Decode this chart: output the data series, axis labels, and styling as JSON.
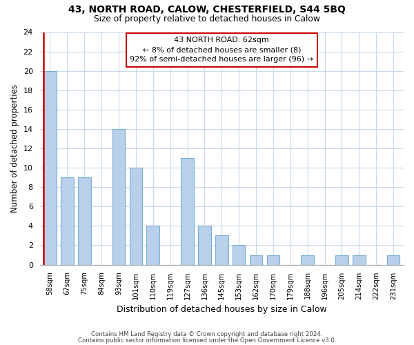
{
  "title": "43, NORTH ROAD, CALOW, CHESTERFIELD, S44 5BQ",
  "subtitle": "Size of property relative to detached houses in Calow",
  "xlabel": "Distribution of detached houses by size in Calow",
  "ylabel": "Number of detached properties",
  "categories": [
    "58sqm",
    "67sqm",
    "75sqm",
    "84sqm",
    "93sqm",
    "101sqm",
    "110sqm",
    "119sqm",
    "127sqm",
    "136sqm",
    "145sqm",
    "153sqm",
    "162sqm",
    "170sqm",
    "179sqm",
    "188sqm",
    "196sqm",
    "205sqm",
    "214sqm",
    "222sqm",
    "231sqm"
  ],
  "values": [
    20,
    9,
    9,
    0,
    14,
    10,
    4,
    0,
    11,
    4,
    3,
    2,
    1,
    1,
    0,
    1,
    0,
    1,
    1,
    0,
    1
  ],
  "bar_color": "#b8d0ea",
  "bar_edge_color": "#7aadd4",
  "highlight_color": "#cc0000",
  "ylim": [
    0,
    24
  ],
  "yticks": [
    0,
    2,
    4,
    6,
    8,
    10,
    12,
    14,
    16,
    18,
    20,
    22,
    24
  ],
  "annotation_title": "43 NORTH ROAD: 62sqm",
  "annotation_line1": "← 8% of detached houses are smaller (8)",
  "annotation_line2": "92% of semi-detached houses are larger (96) →",
  "annotation_box_color": "#ffffff",
  "annotation_box_edge": "#cc0000",
  "footnote1": "Contains HM Land Registry data © Crown copyright and database right 2024.",
  "footnote2": "Contains public sector information licensed under the Open Government Licence v3.0.",
  "background_color": "#ffffff",
  "grid_color": "#c8d8ec"
}
